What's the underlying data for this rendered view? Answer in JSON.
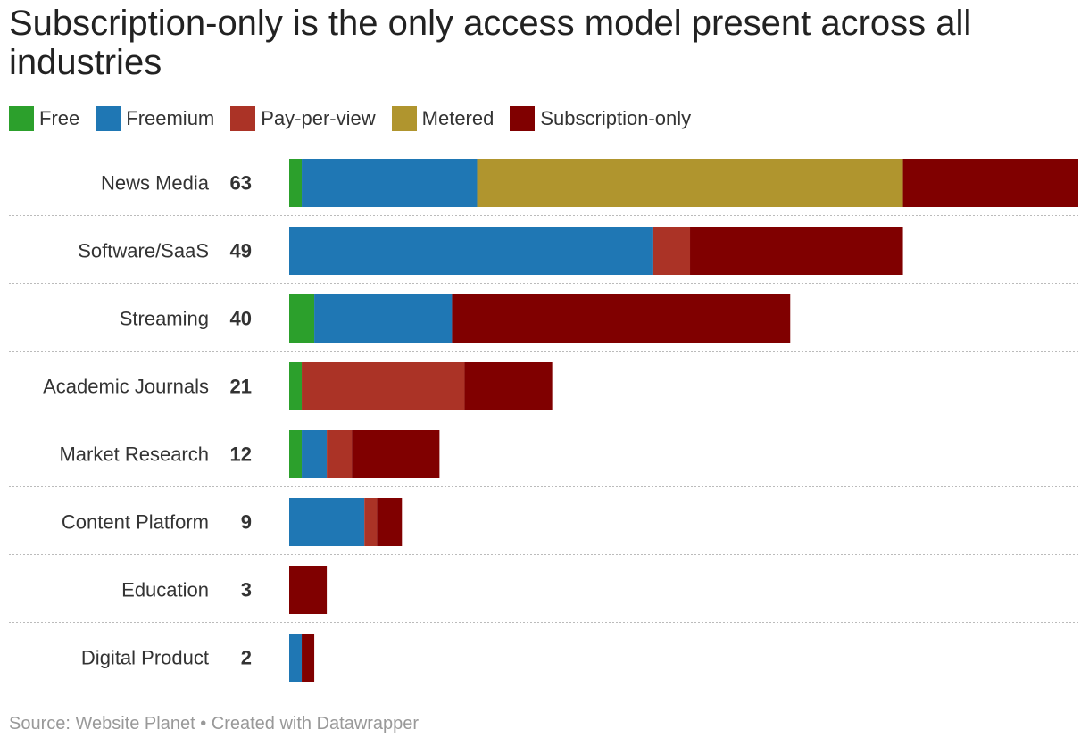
{
  "title": "Subscription-only is the only access model present across all industries",
  "source_text": "Source: Website Planet • Created with Datawrapper",
  "chart_data": {
    "type": "bar",
    "orientation": "horizontal",
    "stacked": true,
    "title": "Subscription-only is the only access model present across all industries",
    "xlabel": "",
    "ylabel": "",
    "xlim": [
      0,
      63
    ],
    "grid": false,
    "legend_position": "top-left",
    "categories": [
      "News Media",
      "Software/SaaS",
      "Streaming",
      "Academic Journals",
      "Market Research",
      "Content Platform",
      "Education",
      "Digital Product"
    ],
    "totals": [
      63,
      49,
      40,
      21,
      12,
      9,
      3,
      2
    ],
    "series": [
      {
        "name": "Free",
        "color": "#2ca02c",
        "values": [
          1,
          0,
          2,
          1,
          1,
          0,
          0,
          0
        ]
      },
      {
        "name": "Freemium",
        "color": "#1f77b4",
        "values": [
          14,
          29,
          11,
          0,
          2,
          6,
          0,
          1
        ]
      },
      {
        "name": "Pay-per-view",
        "color": "#ab3326",
        "values": [
          0,
          3,
          0,
          13,
          2,
          1,
          0,
          0
        ]
      },
      {
        "name": "Metered",
        "color": "#b0952e",
        "values": [
          34,
          0,
          0,
          0,
          0,
          0,
          0,
          0
        ]
      },
      {
        "name": "Subscription-only",
        "color": "#800000",
        "values": [
          14,
          17,
          27,
          7,
          7,
          2,
          3,
          1
        ]
      }
    ]
  }
}
